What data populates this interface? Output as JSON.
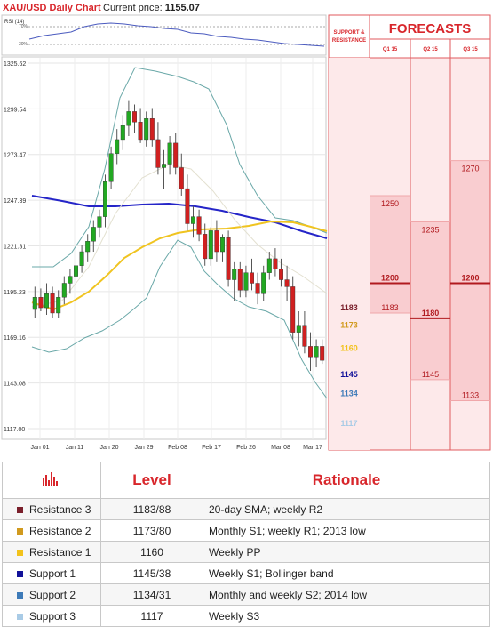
{
  "header": {
    "title": "XAU/USD Daily Chart",
    "price_label": "Current price: ",
    "price_value": "1155.07"
  },
  "rsi_label": "RSI (14)",
  "rsi_levels": [
    "70%",
    "30%"
  ],
  "colors": {
    "r3": "#7a1f2b",
    "r2": "#d19a1e",
    "r1": "#f2c21b",
    "s1": "#12129a",
    "s2": "#3d7ab8",
    "s3": "#a9cbe6",
    "accent": "#d8262b",
    "sma_blue": "#2525c8",
    "sma_yellow": "#f0c420",
    "bollinger": "#6aa8a8"
  },
  "chart_data": {
    "type": "candlestick",
    "title": "XAU/USD Daily Chart",
    "y_ticks": [
      1325.62,
      1299.54,
      1273.47,
      1247.39,
      1221.31,
      1195.23,
      1169.16,
      1143.08,
      1117.0
    ],
    "ylim": [
      1117.0,
      1325.62
    ],
    "x_ticks": [
      "Jan 01",
      "Jan 11",
      "Jan 20",
      "Jan 29",
      "Feb 08",
      "Feb 17",
      "Feb 26",
      "Mar 08",
      "Mar 17"
    ],
    "candles": [
      [
        1185,
        1198,
        1180,
        1192
      ],
      [
        1192,
        1197,
        1184,
        1186
      ],
      [
        1186,
        1200,
        1182,
        1194
      ],
      [
        1194,
        1198,
        1180,
        1183
      ],
      [
        1183,
        1196,
        1180,
        1192
      ],
      [
        1192,
        1204,
        1188,
        1200
      ],
      [
        1200,
        1208,
        1194,
        1204
      ],
      [
        1204,
        1214,
        1200,
        1210
      ],
      [
        1210,
        1222,
        1206,
        1218
      ],
      [
        1218,
        1228,
        1212,
        1224
      ],
      [
        1224,
        1236,
        1218,
        1232
      ],
      [
        1232,
        1242,
        1226,
        1238
      ],
      [
        1238,
        1262,
        1232,
        1258
      ],
      [
        1258,
        1278,
        1254,
        1274
      ],
      [
        1274,
        1288,
        1268,
        1282
      ],
      [
        1282,
        1296,
        1276,
        1290
      ],
      [
        1290,
        1304,
        1284,
        1298
      ],
      [
        1298,
        1302,
        1286,
        1292
      ],
      [
        1292,
        1300,
        1280,
        1282
      ],
      [
        1282,
        1298,
        1278,
        1294
      ],
      [
        1294,
        1300,
        1278,
        1282
      ],
      [
        1282,
        1292,
        1262,
        1266
      ],
      [
        1266,
        1276,
        1254,
        1268
      ],
      [
        1268,
        1284,
        1262,
        1280
      ],
      [
        1280,
        1286,
        1262,
        1266
      ],
      [
        1266,
        1274,
        1250,
        1254
      ],
      [
        1254,
        1262,
        1230,
        1234
      ],
      [
        1234,
        1244,
        1226,
        1238
      ],
      [
        1238,
        1242,
        1224,
        1228
      ],
      [
        1228,
        1234,
        1210,
        1214
      ],
      [
        1214,
        1232,
        1210,
        1230
      ],
      [
        1230,
        1236,
        1212,
        1218
      ],
      [
        1218,
        1228,
        1212,
        1226
      ],
      [
        1226,
        1230,
        1198,
        1202
      ],
      [
        1202,
        1212,
        1190,
        1208
      ],
      [
        1208,
        1212,
        1192,
        1196
      ],
      [
        1196,
        1210,
        1192,
        1206
      ],
      [
        1206,
        1214,
        1196,
        1200
      ],
      [
        1200,
        1206,
        1188,
        1194
      ],
      [
        1194,
        1210,
        1190,
        1206
      ],
      [
        1206,
        1218,
        1202,
        1214
      ],
      [
        1214,
        1220,
        1204,
        1208
      ],
      [
        1208,
        1214,
        1198,
        1202
      ],
      [
        1202,
        1210,
        1190,
        1198
      ],
      [
        1198,
        1204,
        1168,
        1172
      ],
      [
        1172,
        1184,
        1164,
        1176
      ],
      [
        1176,
        1184,
        1160,
        1164
      ],
      [
        1164,
        1172,
        1150,
        1158
      ],
      [
        1158,
        1168,
        1152,
        1164
      ],
      [
        1164,
        1168,
        1154,
        1156
      ]
    ],
    "levels": [
      {
        "name": "R3",
        "value": 1183,
        "color": "#7a1f2b"
      },
      {
        "name": "R2",
        "value": 1173,
        "color": "#d19a1e"
      },
      {
        "name": "R1",
        "value": 1160,
        "color": "#f2c21b"
      },
      {
        "name": "S1",
        "value": 1145,
        "color": "#12129a"
      },
      {
        "name": "S2",
        "value": 1134,
        "color": "#3d7ab8"
      },
      {
        "name": "S3",
        "value": 1117,
        "color": "#a9cbe6"
      }
    ]
  },
  "forecast_panel": {
    "support_label_1": "SUPPORT &",
    "support_label_2": "RESISTANCE",
    "title": "FORECASTS",
    "columns": [
      {
        "label": "Q1 15",
        "high": 1250,
        "mid": 1200,
        "low": 1183
      },
      {
        "label": "Q2 15",
        "high": 1235,
        "mid": 1180,
        "low": 1145
      },
      {
        "label": "Q3 15",
        "high": 1270,
        "mid": 1200,
        "low": 1133
      }
    ]
  },
  "table": {
    "headers": [
      "Level",
      "Rationale"
    ],
    "rows": [
      {
        "name": "Resistance 3",
        "level": "1183/88",
        "rationale": "20-day SMA; weekly R2",
        "color": "#7a1f2b"
      },
      {
        "name": "Resistance 2",
        "level": "1173/80",
        "rationale": "Monthly S1; weekly R1; 2013 low",
        "color": "#d19a1e"
      },
      {
        "name": "Resistance 1",
        "level": "1160",
        "rationale": "Weekly PP",
        "color": "#f2c21b"
      },
      {
        "name": "Support 1",
        "level": "1145/38",
        "rationale": "Weekly S1; Bollinger band",
        "color": "#12129a"
      },
      {
        "name": "Support 2",
        "level": "1134/31",
        "rationale": "Monthly and weekly S2; 2014 low",
        "color": "#3d7ab8"
      },
      {
        "name": "Support 3",
        "level": "1117",
        "rationale": "Weekly S3",
        "color": "#a9cbe6"
      }
    ]
  }
}
